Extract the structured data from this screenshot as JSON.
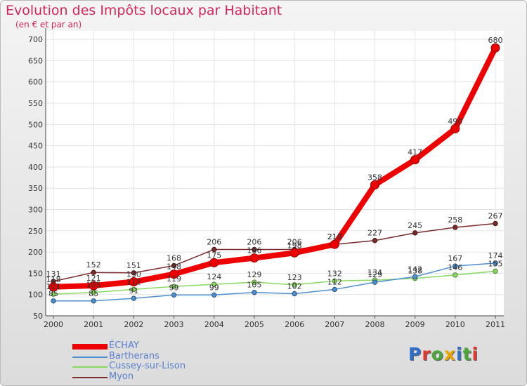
{
  "title": "Evolution des Impôts locaux par Habitant",
  "subtitle": "(en € et par an)",
  "logo": {
    "text": "Proxiti",
    "letter_colors": [
      "#2f6fc9",
      "#e03a2f",
      "#4aa83b",
      "#e8a400",
      "#2f6fc9",
      "#4aa83b",
      "#e03a2f"
    ]
  },
  "chart_data": {
    "type": "line",
    "title": "Evolution des Impôts locaux par Habitant",
    "subtitle": "(en € et par an)",
    "xlabel": "",
    "ylabel": "",
    "x": [
      "2000",
      "2001",
      "2002",
      "2003",
      "2004",
      "2005",
      "2006",
      "2007",
      "2008",
      "2009",
      "2010",
      "2011"
    ],
    "ylim": [
      50,
      720
    ],
    "yticks": [
      50,
      100,
      150,
      200,
      250,
      300,
      350,
      400,
      450,
      500,
      550,
      600,
      650,
      700
    ],
    "grid": true,
    "legend_position": "bottom-left",
    "series": [
      {
        "name": "Myon",
        "color": "#7a2a2a",
        "values": [
          131,
          152,
          151,
          168,
          206,
          206,
          206,
          218,
          227,
          245,
          258,
          267
        ],
        "labels": [
          "131",
          "152",
          "151",
          "168",
          "206",
          "206",
          "206",
          "218",
          "227",
          "245",
          "258",
          "267"
        ]
      },
      {
        "name": "Cussey-sur-Lison",
        "color": "#88d860",
        "values": [
          101,
          105,
          112,
          119,
          124,
          129,
          123,
          132,
          134,
          138,
          146,
          155
        ],
        "labels": [
          "101",
          "105",
          "112",
          "119",
          "124",
          "129",
          "123",
          "132",
          "134",
          "138",
          "146",
          "155"
        ]
      },
      {
        "name": "Bartherans",
        "color": "#4d8fce",
        "values": [
          85,
          85,
          91,
          99,
          99,
          105,
          102,
          112,
          129,
          142,
          167,
          174
        ],
        "labels": [
          "85",
          "85",
          "91",
          "99",
          "99",
          "105",
          "102",
          "112",
          "129",
          "142",
          "167",
          "174"
        ]
      },
      {
        "name": "ÉCHAY",
        "color": "#ee0000",
        "values": [
          118,
          121,
          130,
          148,
          175,
          186,
          198,
          218,
          358,
          417,
          490,
          680
        ],
        "labels": [
          "118",
          "121",
          "130",
          "148",
          "175",
          "186",
          "198",
          "218",
          "358",
          "417",
          "490",
          "680"
        ]
      }
    ],
    "legend": [
      "ÉCHAY",
      "Bartherans",
      "Cussey-sur-Lison",
      "Myon"
    ]
  }
}
